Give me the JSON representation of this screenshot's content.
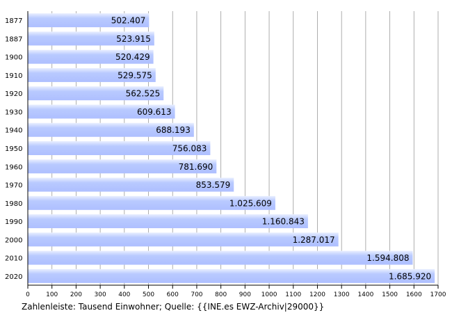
{
  "caption": "Zahlenleiste: Tausend Einwohner; Quelle: {{INE.es EWZ-Archiv|29000}}",
  "colors": {
    "bar": "#b8c9ff",
    "bar_light": "#e8eeff",
    "grid": "#9a9a9a",
    "axis": "#000000"
  },
  "chart_data": {
    "type": "bar",
    "orientation": "horizontal",
    "categories": [
      "1877",
      "1887",
      "1900",
      "1910",
      "1920",
      "1930",
      "1940",
      "1950",
      "1960",
      "1970",
      "1980",
      "1990",
      "2000",
      "2010",
      "2020"
    ],
    "values": [
      502.407,
      523.915,
      520.429,
      529.575,
      562.525,
      609.613,
      688.193,
      756.083,
      781.69,
      853.579,
      1025.609,
      1160.843,
      1287.017,
      1594.808,
      1685.92
    ],
    "value_labels": [
      "502.407",
      "523.915",
      "520.429",
      "529.575",
      "562.525",
      "609.613",
      "688.193",
      "756.083",
      "781.690",
      "853.579",
      "1.025.609",
      "1.160.843",
      "1.287.017",
      "1.594.808",
      "1.685.920"
    ],
    "xlim": [
      0,
      1700
    ],
    "xticks": [
      0,
      100,
      200,
      300,
      400,
      500,
      600,
      700,
      800,
      900,
      1000,
      1100,
      1200,
      1300,
      1400,
      1500,
      1600,
      1700
    ],
    "grid": true,
    "title": "",
    "xlabel": "",
    "ylabel": ""
  }
}
